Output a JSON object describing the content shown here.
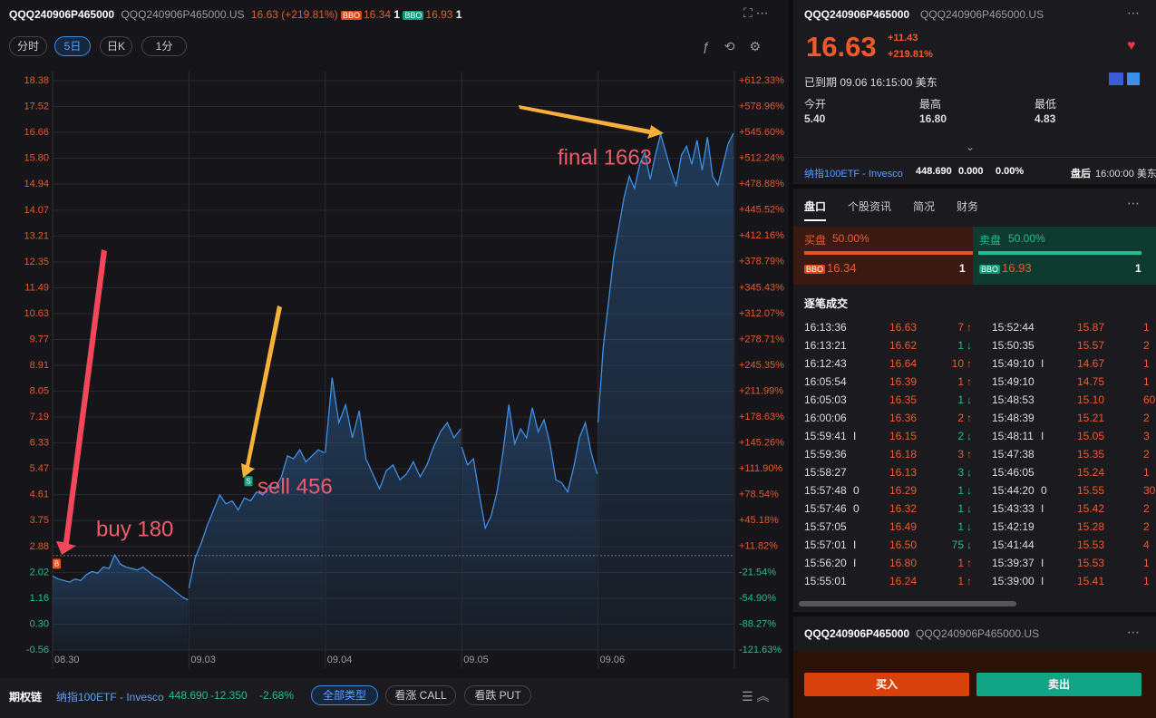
{
  "header": {
    "symbol": "QQQ240906P465000",
    "full_symbol": "QQQ240906P465000.US",
    "price": "16.63",
    "change": "(+219.81%)",
    "bid_tag": "BBO",
    "bid": "16.34",
    "bid_size": "1",
    "ask_tag": "BBO",
    "ask": "16.93",
    "ask_size": "1"
  },
  "toolbar": {
    "tabs": [
      "分时",
      "5日",
      "日K",
      "1分"
    ]
  },
  "chart": {
    "type": "line",
    "color": "#3d8fe8",
    "days": [
      {
        "label": "08.30",
        "values": [
          1.9,
          1.8,
          1.75,
          1.7,
          1.8,
          1.75,
          1.95,
          2.05,
          2.0,
          2.2,
          2.15,
          2.6,
          2.3,
          2.2,
          2.15,
          2.1,
          2.2,
          2.05,
          1.9,
          1.8,
          1.65,
          1.5,
          1.35,
          1.2,
          1.1
        ]
      },
      {
        "label": "09.03",
        "values": [
          1.5,
          2.5,
          3.0,
          3.6,
          4.1,
          4.6,
          4.3,
          4.4,
          4.1,
          4.5,
          4.4,
          4.7,
          4.6,
          4.9,
          4.8,
          5.2,
          5.9,
          5.8,
          6.1,
          5.7,
          5.9,
          6.1,
          6.0
        ]
      },
      {
        "label": "09.04",
        "values": [
          6.0,
          8.5,
          7.0,
          7.6,
          6.5,
          7.4,
          5.8,
          5.3,
          4.8,
          5.4,
          5.6,
          5.1,
          5.3,
          5.7,
          5.2,
          5.6,
          6.2,
          6.7,
          7.0,
          6.5,
          6.8
        ]
      },
      {
        "label": "09.05",
        "values": [
          6.2,
          5.6,
          5.8,
          4.6,
          3.5,
          3.9,
          4.7,
          6.0,
          7.6,
          6.3,
          6.8,
          6.5,
          7.5,
          6.7,
          7.1,
          6.3,
          5.1,
          5.0,
          4.7,
          5.5,
          6.5,
          7.0,
          6.0,
          5.3
        ]
      },
      {
        "label": "09.06",
        "values": [
          7.0,
          9.5,
          11.0,
          12.5,
          13.5,
          14.5,
          15.2,
          14.8,
          15.6,
          16.0,
          15.1,
          15.9,
          16.6,
          16.0,
          15.4,
          14.9,
          15.9,
          16.2,
          15.6,
          16.4,
          15.4,
          16.5,
          15.2,
          14.9,
          15.6,
          16.3,
          16.63
        ]
      }
    ],
    "ylim": [
      -0.56,
      18.38
    ],
    "yticks": [
      18.38,
      17.52,
      16.66,
      {
        "value": 15.8,
        "label": "15.80"
      },
      14.94,
      14.07,
      13.21,
      12.35,
      11.49,
      10.63,
      9.77,
      8.91,
      8.05,
      7.19,
      6.33,
      5.47,
      4.61,
      3.75,
      2.88,
      2.02,
      1.16,
      {
        "value": 0.3,
        "label": "0.30"
      },
      -0.56
    ],
    "y2lim": [
      -121.63,
      612.33
    ],
    "y2ticks": [
      {
        "value": 612.33,
        "label": "+612.33%"
      },
      {
        "value": 578.96,
        "label": "+578.96%"
      },
      {
        "value": 545.6,
        "label": "+545.60%"
      },
      {
        "value": 512.24,
        "label": "+512.24%"
      },
      {
        "value": 478.88,
        "label": "+478.88%"
      },
      {
        "value": 445.52,
        "label": "+445.52%"
      },
      {
        "value": 412.16,
        "label": "+412.16%"
      },
      {
        "value": 378.79,
        "label": "+378.79%"
      },
      {
        "value": 345.43,
        "label": "+345.43%"
      },
      {
        "value": 312.07,
        "label": "+312.07%"
      },
      {
        "value": 278.71,
        "label": "+278.71%"
      },
      {
        "value": 245.35,
        "label": "+245.35%"
      },
      {
        "value": 211.99,
        "label": "+211.99%"
      },
      {
        "value": 178.63,
        "label": "+178.63%"
      },
      {
        "value": 145.26,
        "label": "+145.26%"
      },
      {
        "value": 111.9,
        "label": "+111.90%"
      },
      {
        "value": 78.54,
        "label": "+78.54%"
      },
      {
        "value": 45.18,
        "label": "+45.18%"
      },
      {
        "value": 11.82,
        "label": "+11.82%"
      },
      {
        "value": -21.54,
        "label": "-21.54%"
      },
      {
        "value": -54.9,
        "label": "-54.90%"
      },
      {
        "value": -88.27,
        "label": "-88.27%"
      },
      {
        "value": -121.63,
        "label": "-121.63%"
      }
    ],
    "marker_buy": "B",
    "marker_sell": "S",
    "annotations": {
      "buy": "buy 180",
      "sell": "sell 456",
      "final": "final 1663"
    }
  },
  "bottom_bar": {
    "title": "期权链",
    "underlying": "纳指100ETF - Invesco",
    "price": "448.690",
    "change": "-12.350",
    "change_pct": "-2.68%",
    "filters": [
      "全部类型",
      "看涨 CALL",
      "看跌 PUT"
    ]
  },
  "quote": {
    "symbol": "QQQ240906P465000",
    "full_symbol": "QQQ240906P465000.US",
    "price": "16.63",
    "change": "+11.43",
    "change_pct": "+219.81%",
    "status": "已到期 09.06 16:15:00 美东",
    "stats": [
      {
        "label": "今开",
        "value": "5.40"
      },
      {
        "label": "最高",
        "value": "16.80"
      },
      {
        "label": "最低",
        "value": "4.83"
      }
    ],
    "underlying": "纳指100ETF - Invesco",
    "underlying_price": "448.690",
    "underlying_change": "0.000",
    "underlying_pct": "0.00%",
    "session": "盘后",
    "session_time": "16:00:00 美东"
  },
  "tabs": [
    "盘口",
    "个股资讯",
    "简况",
    "财务"
  ],
  "book": {
    "bid_label": "买盘",
    "bid_pct": "50.00%",
    "ask_label": "卖盘",
    "ask_pct": "50.00%",
    "bid_tag": "BBO",
    "bid": "16.34",
    "bid_size": "1",
    "ask_tag": "BBO",
    "ask": "16.93",
    "ask_size": "1"
  },
  "trades_title": "逐笔成交",
  "trades": [
    [
      {
        "time": "16:13:36",
        "flag": "",
        "price": "16.63",
        "size": "7",
        "dir": "↑"
      },
      {
        "time": "16:13:21",
        "flag": "",
        "price": "16.62",
        "size": "1",
        "dir": "↓"
      },
      {
        "time": "16:12:43",
        "flag": "",
        "price": "16.64",
        "size": "10",
        "dir": "↑"
      },
      {
        "time": "16:05:54",
        "flag": "",
        "price": "16.39",
        "size": "1",
        "dir": "↑"
      },
      {
        "time": "16:05:03",
        "flag": "",
        "price": "16.35",
        "size": "1",
        "dir": "↓"
      },
      {
        "time": "16:00:06",
        "flag": "",
        "price": "16.36",
        "size": "2",
        "dir": "↑"
      },
      {
        "time": "15:59:41",
        "flag": "I",
        "price": "16.15",
        "size": "2",
        "dir": "↓"
      },
      {
        "time": "15:59:36",
        "flag": "",
        "price": "16.18",
        "size": "3",
        "dir": "↑"
      },
      {
        "time": "15:58:27",
        "flag": "",
        "price": "16.13",
        "size": "3",
        "dir": "↓"
      },
      {
        "time": "15:57:48",
        "flag": "0",
        "price": "16.29",
        "size": "1",
        "dir": "↓"
      },
      {
        "time": "15:57:46",
        "flag": "0",
        "price": "16.32",
        "size": "1",
        "dir": "↓"
      },
      {
        "time": "15:57:05",
        "flag": "",
        "price": "16.49",
        "size": "1",
        "dir": "↓"
      },
      {
        "time": "15:57:01",
        "flag": "I",
        "price": "16.50",
        "size": "75",
        "dir": "↓"
      },
      {
        "time": "15:56:20",
        "flag": "I",
        "price": "16.80",
        "size": "1",
        "dir": "↑"
      },
      {
        "time": "15:55:01",
        "flag": "",
        "price": "16.24",
        "size": "1",
        "dir": "↑"
      }
    ],
    [
      {
        "time": "15:52:44",
        "flag": "",
        "price": "15.87",
        "size": "1"
      },
      {
        "time": "15:50:35",
        "flag": "",
        "price": "15.57",
        "size": "2"
      },
      {
        "time": "15:49:10",
        "flag": "I",
        "price": "14.67",
        "size": "1"
      },
      {
        "time": "15:49:10",
        "flag": "",
        "price": "14.75",
        "size": "1"
      },
      {
        "time": "15:48:53",
        "flag": "",
        "price": "15.10",
        "size": "60"
      },
      {
        "time": "15:48:39",
        "flag": "",
        "price": "15.21",
        "size": "2"
      },
      {
        "time": "15:48:11",
        "flag": "I",
        "price": "15.05",
        "size": "3"
      },
      {
        "time": "15:47:38",
        "flag": "",
        "price": "15.35",
        "size": "2"
      },
      {
        "time": "15:46:05",
        "flag": "",
        "price": "15.24",
        "size": "1"
      },
      {
        "time": "15:44:20",
        "flag": "0",
        "price": "15.55",
        "size": "30"
      },
      {
        "time": "15:43:33",
        "flag": "I",
        "price": "15.42",
        "size": "2"
      },
      {
        "time": "15:42:19",
        "flag": "",
        "price": "15.28",
        "size": "2"
      },
      {
        "time": "15:41:44",
        "flag": "",
        "price": "15.53",
        "size": "4"
      },
      {
        "time": "15:39:37",
        "flag": "I",
        "price": "15.53",
        "size": "1"
      },
      {
        "time": "15:39:00",
        "flag": "I",
        "price": "15.41",
        "size": "1"
      }
    ]
  ],
  "order": {
    "symbol": "QQQ240906P465000",
    "full_symbol": "QQQ240906P465000.US",
    "buy": "买入",
    "sell": "卖出"
  }
}
